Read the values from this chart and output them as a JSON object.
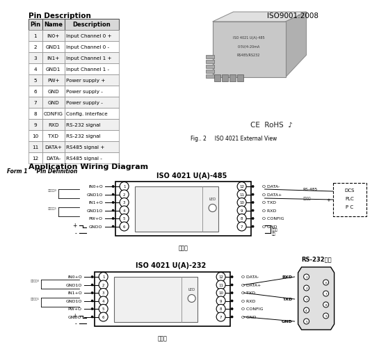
{
  "bg_color": "#ffffff",
  "pin_table": {
    "title": "Pin Description",
    "headers": [
      "Pin",
      "Name",
      "Description"
    ],
    "rows": [
      [
        "1",
        "IN0+",
        "Input Channel 0 +"
      ],
      [
        "2",
        "GND1",
        "Input Channel 0 -"
      ],
      [
        "3",
        "IN1+",
        "Input Channel 1 +"
      ],
      [
        "4",
        "GND1",
        "Input Channel 1 -"
      ],
      [
        "5",
        "PW+",
        "Power supply +"
      ],
      [
        "6",
        "GND",
        "Power supply -"
      ],
      [
        "7",
        "GND",
        "Power supply -"
      ],
      [
        "8",
        "CONFIG",
        "Config. interface"
      ],
      [
        "9",
        "RXD",
        "RS-232 signal"
      ],
      [
        "10",
        "TXD",
        "RS-232 signal"
      ],
      [
        "11",
        "DATA+",
        "RS485 signal +"
      ],
      [
        "12",
        "DATA-",
        "RS485 signal -"
      ]
    ],
    "form_label": "Form 1     Pin Definition"
  },
  "iso_label": "ISO9001:2008",
  "fig_label": "Fig.. 2     ISO 4021 External View",
  "app_wiring_title": "Application Wiring Diagram",
  "diagram_485": {
    "title": "ISO 4021 U(A)-485",
    "left_labels": [
      "IN0+",
      "GND1",
      "IN1+",
      "GND1",
      "PW+",
      "GND"
    ],
    "right_labels": [
      "DATA-",
      "DATA+",
      "TXD",
      "RXD",
      "CONFIG",
      "GND"
    ],
    "right_pins": [
      "12",
      "11",
      "10",
      "9",
      "8",
      "7"
    ],
    "left_pins": [
      "1",
      "2",
      "3",
      "4",
      "5",
      "6"
    ],
    "bottom_label": "顶视图",
    "ch0_label": "输入通道0",
    "ch1_label": "输入通道1",
    "dcs_lines": [
      "DCS",
      "PLC",
      "P C"
    ],
    "rs485_label": "RS-485",
    "rs485_sub": "中间通道",
    "config_label": "配置端\n端口"
  },
  "diagram_232": {
    "title": "ISO 4021 U(A)-232",
    "left_labels": [
      "IN0+",
      "GND1",
      "IN1+",
      "GND1",
      "PW+",
      "GND"
    ],
    "right_labels": [
      "DATA-",
      "DATA+",
      "TXD",
      "RXD",
      "CONFIG",
      "GND"
    ],
    "right_pins": [
      "12",
      "11",
      "10",
      "9",
      "8",
      "7"
    ],
    "left_pins": [
      "1",
      "2",
      "3",
      "4",
      "5",
      "6"
    ],
    "bottom_label": "顶视图",
    "ch0_label": "输入通道0",
    "ch1_label": "输入通道1",
    "rs232_title": "RS-232接口",
    "rxd_label": "RXD",
    "txd_label": "TXD",
    "gnd_label": "GND"
  }
}
